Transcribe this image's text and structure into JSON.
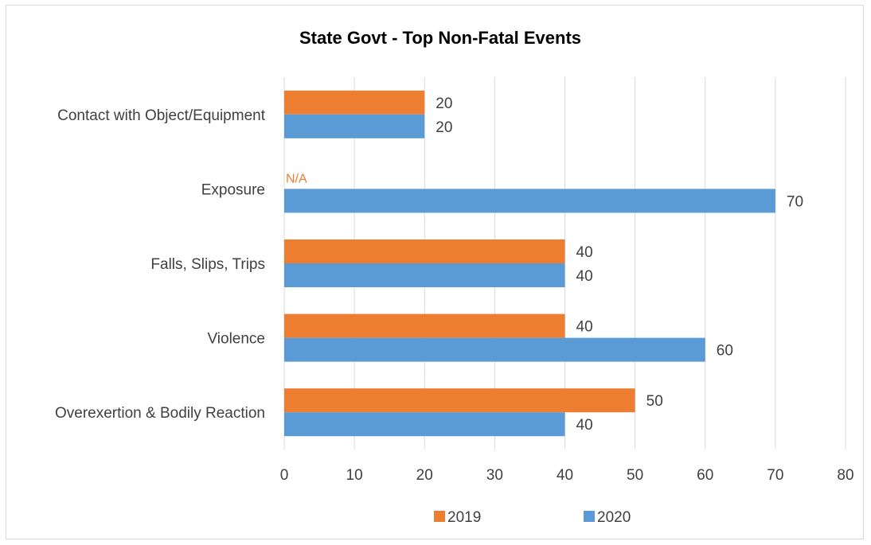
{
  "chart_data": {
    "type": "bar",
    "orientation": "horizontal",
    "title": "State Govt - Top Non-Fatal Events",
    "categories": [
      "Contact with Object/Equipment",
      "Exposure",
      "Falls, Slips, Trips",
      "Violence",
      "Overexertion & Bodily Reaction"
    ],
    "series": [
      {
        "name": "2019",
        "color": "#ED7D31",
        "values": [
          20,
          null,
          40,
          40,
          50
        ],
        "labels": [
          "20",
          "N/A",
          "40",
          "40",
          "50"
        ]
      },
      {
        "name": "2020",
        "color": "#5B9BD5",
        "values": [
          20,
          70,
          40,
          60,
          40
        ],
        "labels": [
          "20",
          "70",
          "40",
          "60",
          "40"
        ]
      }
    ],
    "xlim": [
      0,
      80
    ],
    "xticks": [
      0,
      10,
      20,
      30,
      40,
      50,
      60,
      70,
      80
    ],
    "grid": "vertical",
    "legend": "bottom"
  }
}
